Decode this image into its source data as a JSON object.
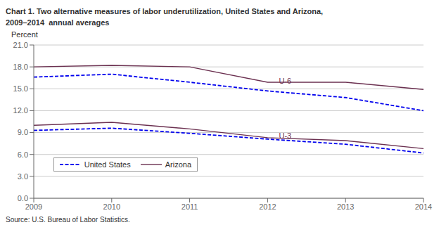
{
  "chart_data": {
    "type": "line",
    "title": "Chart 1. Two alternative measures of labor underutilization, United States and Arizona,\n2009–2014  annual averages",
    "ylabel": "Percent",
    "source": "Source: U.S. Bureau of Labor Statistics.",
    "x": [
      2009,
      2010,
      2011,
      2012,
      2013,
      2014
    ],
    "xlim": [
      2009,
      2014
    ],
    "xticks": [
      2009,
      2010,
      2011,
      2012,
      2013,
      2014
    ],
    "ylim": [
      0,
      21.0
    ],
    "yticks": [
      {
        "value": 0.0,
        "label": "0.0"
      },
      {
        "value": 3.0,
        "label": "3.0"
      },
      {
        "value": 6.0,
        "label": "6.0"
      },
      {
        "value": 9.0,
        "label": "9.0"
      },
      {
        "value": 12.0,
        "label": "12.0"
      },
      {
        "value": 15.0,
        "label": "15.0"
      },
      {
        "value": 18.0,
        "label": "18.0"
      },
      {
        "value": 21.0,
        "label": "21.0"
      }
    ],
    "grid": "y",
    "legend": "lower left",
    "series": [
      {
        "name": "United States",
        "color": "#0000EE",
        "line_style": "dashed",
        "values": [
          16.6,
          17.0,
          15.9,
          14.7,
          13.8,
          12.0
        ]
      },
      {
        "name": "Arizona",
        "color": "#6B3050",
        "line_style": "solid",
        "values": [
          18.0,
          18.2,
          18.0,
          15.9,
          15.9,
          14.9
        ]
      },
      {
        "color": "#0000EE",
        "line_style": "dashed",
        "values": [
          9.3,
          9.6,
          8.9,
          8.1,
          7.4,
          6.2
        ]
      },
      {
        "color": "#6B3050",
        "line_style": "solid",
        "values": [
          10.0,
          10.4,
          9.5,
          8.3,
          7.9,
          6.8
        ]
      }
    ],
    "annotations": [
      {
        "text": "U-6",
        "x": 2012.1,
        "y": 16.1,
        "color": "#6B3050"
      },
      {
        "text": "U-3",
        "x": 2012.1,
        "y": 8.55,
        "color": "#6B3050"
      }
    ]
  }
}
